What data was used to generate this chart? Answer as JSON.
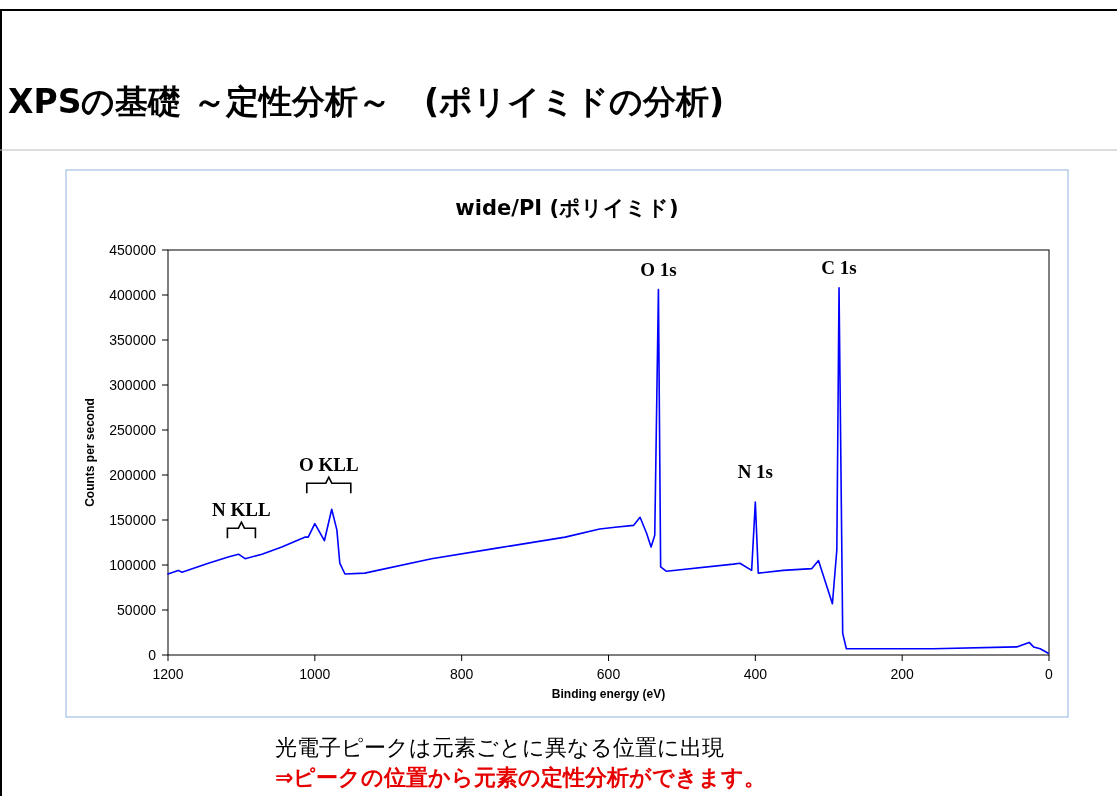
{
  "chart_data": {
    "type": "line",
    "title": "XPSの基礎 ～定性分析～　(ポリイミドの分析)",
    "subtitle": "wide/PI (ポリイミド)",
    "xlabel": "Binding energy (eV)",
    "ylabel": "Counts per second",
    "xlim": [
      1200,
      0
    ],
    "xticks": [
      1200,
      1000,
      800,
      600,
      400,
      200,
      0
    ],
    "ylim": [
      0,
      450000
    ],
    "yticks": [
      0,
      50000,
      100000,
      150000,
      200000,
      250000,
      300000,
      350000,
      400000,
      450000
    ],
    "grid": false,
    "marker": "none",
    "line_style": "solid",
    "series": [
      {
        "color": "#0000ff",
        "x": [
          1200,
          1186,
          1181,
          1145,
          1118,
          1104,
          1095,
          1072,
          1045,
          1013,
          1009,
          1000,
          987,
          977,
          970,
          966,
          959,
          932,
          841,
          750,
          659,
          612,
          591,
          566,
          557,
          548,
          542,
          537,
          532,
          529,
          521,
          430,
          421,
          405,
          400,
          396,
          362,
          323,
          314,
          295,
          289,
          286,
          281,
          276,
          158,
          44,
          27,
          21,
          12,
          1
        ],
        "values": [
          90000,
          94000,
          92000,
          102000,
          109000,
          112000,
          107000,
          112000,
          120000,
          131000,
          131000,
          146000,
          127000,
          162000,
          139000,
          102000,
          90000,
          91000,
          107000,
          119000,
          131000,
          140000,
          142000,
          144000,
          153000,
          135000,
          120000,
          133000,
          406000,
          98000,
          93000,
          101000,
          102000,
          94000,
          170000,
          91000,
          94000,
          96000,
          105000,
          57000,
          117000,
          408000,
          24000,
          7000,
          7000,
          9000,
          14000,
          9000,
          7000,
          2000
        ]
      }
    ],
    "annotations": [
      {
        "text": "O 1s",
        "x": 532,
        "y": 406000
      },
      {
        "text": "C 1s",
        "x": 286,
        "y": 408000
      },
      {
        "text": "N 1s",
        "x": 400,
        "y": 170000
      },
      {
        "text": "O KLL",
        "x": 981,
        "y": 162000
      },
      {
        "text": "N KLL",
        "x": 1100,
        "y": 112000
      },
      "光電子ピークは元素ごとに異なる位置に出現",
      "⇒ピークの位置から元素の定性分析ができます。"
    ]
  }
}
